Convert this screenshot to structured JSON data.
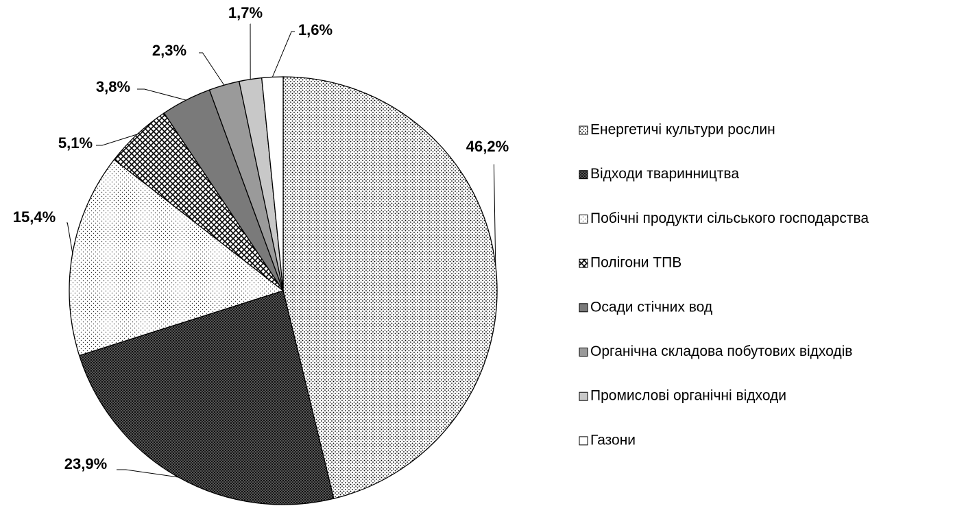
{
  "chart_data": {
    "type": "pie",
    "categories": [
      "Енергетичі культури рослин",
      "Відходи тваринництва",
      "Побічні продукти сільського господарства",
      "Полігони ТПВ",
      "Осади стічних вод",
      "Органічна складова побутових відходів",
      "Промислові органічні відходи",
      "Газони"
    ],
    "values": [
      46.2,
      23.9,
      15.4,
      5.1,
      3.8,
      2.3,
      1.7,
      1.6
    ],
    "value_labels": [
      "46,2%",
      "23,9%",
      "15,4%",
      "5,1%",
      "3,8%",
      "2,3%",
      "1,7%",
      "1,6%"
    ],
    "colors": [
      "#ffffff",
      "#555555",
      "#ffffff",
      "#ffffff",
      "#7a7a7a",
      "#9a9a9a",
      "#c8c8c8",
      "#ffffff"
    ],
    "legend": "right"
  }
}
